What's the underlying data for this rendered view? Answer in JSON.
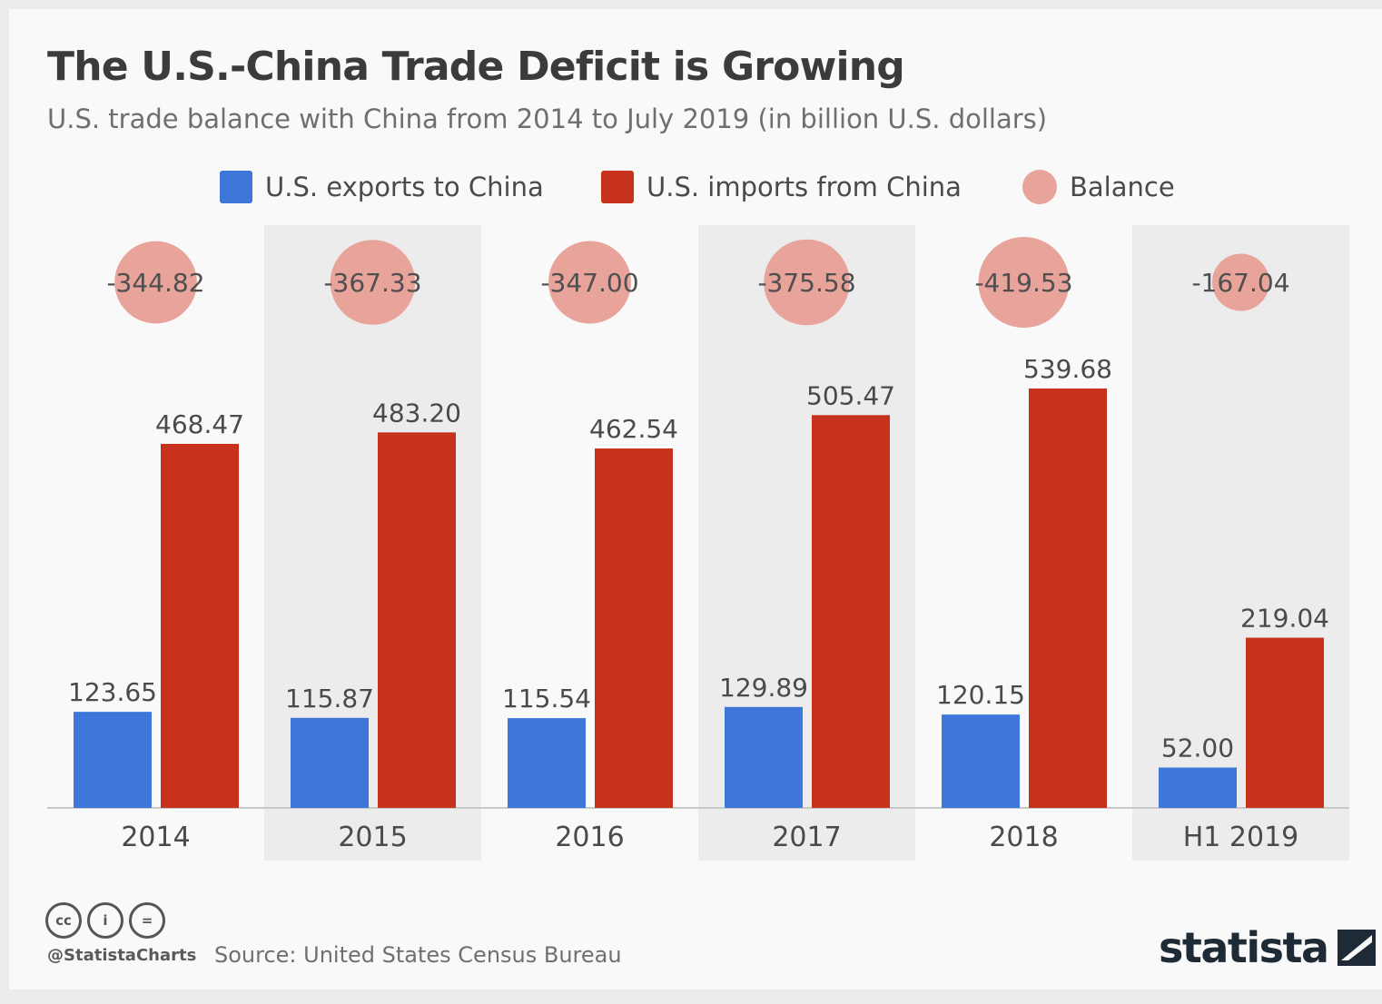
{
  "header": {
    "title": "The U.S.-China Trade Deficit is Growing",
    "subtitle": "U.S. trade balance with China from 2014 to July 2019 (in billion U.S. dollars)"
  },
  "legend": [
    {
      "label": "U.S. exports to China",
      "color": "#3e77d9",
      "shape": "square"
    },
    {
      "label": "U.S. imports from China",
      "color": "#c7321c",
      "shape": "square"
    },
    {
      "label": "Balance",
      "color": "#e8a39a",
      "shape": "circle"
    }
  ],
  "chart_data": {
    "type": "bar",
    "title": "The U.S.-China Trade Deficit is Growing",
    "subtitle": "U.S. trade balance with China from 2014 to July 2019 (in billion U.S. dollars)",
    "categories": [
      "2014",
      "2015",
      "2016",
      "2017",
      "2018",
      "H1 2019"
    ],
    "series": [
      {
        "name": "U.S. exports to China",
        "color": "#3e77d9",
        "values": [
          123.65,
          115.87,
          115.54,
          129.89,
          120.15,
          52.0
        ],
        "labels": [
          "123.65",
          "115.87",
          "115.54",
          "129.89",
          "120.15",
          "52.00"
        ]
      },
      {
        "name": "U.S. imports from China",
        "color": "#c7321c",
        "values": [
          468.47,
          483.2,
          462.54,
          505.47,
          539.68,
          219.04
        ],
        "labels": [
          "468.47",
          "483.20",
          "462.54",
          "505.47",
          "539.68",
          "219.04"
        ]
      },
      {
        "name": "Balance",
        "color": "#e8a39a",
        "values": [
          -344.82,
          -367.33,
          -347.0,
          -375.58,
          -419.53,
          -167.04
        ],
        "labels": [
          "-344.82",
          "-367.33",
          "-347.00",
          "-375.58",
          "-419.53",
          "-167.04"
        ]
      }
    ],
    "ylim": [
      0,
      540
    ],
    "grid": false,
    "legend_position": "top"
  },
  "footer": {
    "license_icons": [
      "cc-icon",
      "attribution-icon",
      "no-derivatives-icon"
    ],
    "license_text": [
      "cc",
      "i",
      "="
    ],
    "handle": "@StatistaCharts",
    "source": "Source: United States Census Bureau",
    "brand": "statista"
  }
}
